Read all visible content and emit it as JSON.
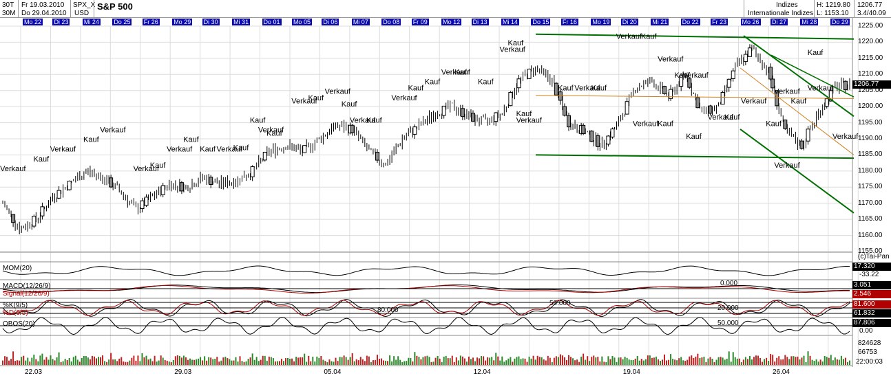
{
  "header": {
    "interval_1": "30T",
    "interval_2": "30M",
    "date_from_label": "Fr 19.03.2010",
    "date_to_label": "Do 29.04.2010",
    "symbol": "SPX_X",
    "currency": "USD",
    "title": "S&P 500",
    "group_1": "Indizes",
    "group_2": "Internationale Indizes",
    "high_label": "H: 1219.80",
    "low_label": "L: 1153.10",
    "last_price": "1206.77",
    "change": "3.4/40.09"
  },
  "date_chips": [
    "Mo 22",
    "Di 23",
    "Mi 24",
    "Do 25",
    "Fr 26",
    "Mo 29",
    "Di 30",
    "Mi 31",
    "Do 01",
    "Mo 05",
    "Di 06",
    "Mi 07",
    "Do 08",
    "Fr 09",
    "Mo 12",
    "Di 13",
    "Mi 14",
    "Do 15",
    "Fr 16",
    "Mo 19",
    "Di 20",
    "Mi 21",
    "Do 22",
    "Fr 23",
    "Mo 26",
    "Di 27",
    "Mi 28",
    "Do 29"
  ],
  "x_axis_labels": [
    "22.03",
    "29.03",
    "05.04",
    "12.04",
    "19.04",
    "26.04"
  ],
  "price_axis": {
    "ticks": [
      "1225.00",
      "1220.00",
      "1215.00",
      "1210.00",
      "1205.00",
      "1200.00",
      "1195.00",
      "1190.00",
      "1185.00",
      "1180.00",
      "1175.00",
      "1170.00",
      "1165.00",
      "1160.00",
      "1155.00"
    ],
    "current_value": "1206.77",
    "copyright": "(c)Tai-Pan"
  },
  "indicators": {
    "mom": {
      "label": "MOM(20)",
      "value": "17.320",
      "min": "-33.22"
    },
    "macd": {
      "label": "MACD(12/26/9)",
      "signal_label": "Signal(12/26/9)",
      "value": "3.051",
      "signal_value": "2.546",
      "zero": "0.000"
    },
    "stoch": {
      "label": "%K(9/5)",
      "d_label": "%D(9/5)",
      "k_value": "81.600",
      "d_value": "61.832",
      "ref_1": "80.000",
      "ref_2": "50.000",
      "ref_3": "20.000"
    },
    "obos": {
      "label": "OBOS(20)",
      "value": "87.806",
      "zero": "0.00",
      "ref": "50.000"
    },
    "volume": {
      "max": "824628",
      "mid": "66753",
      "time": "22:00:03"
    }
  },
  "signals": [
    {
      "t": "Verkauf",
      "x": 1,
      "y": 1180
    },
    {
      "t": "Kauf",
      "x": 3,
      "y": 1183
    },
    {
      "t": "Verkauf",
      "x": 4,
      "y": 1186
    },
    {
      "t": "Kauf",
      "x": 6,
      "y": 1189
    },
    {
      "t": "Verkauf",
      "x": 7,
      "y": 1192
    },
    {
      "t": "Verkauf",
      "x": 9,
      "y": 1180
    },
    {
      "t": "Kauf",
      "x": 10,
      "y": 1181
    },
    {
      "t": "Verkauf",
      "x": 11,
      "y": 1186
    },
    {
      "t": "Kauf",
      "x": 12,
      "y": 1189
    },
    {
      "t": "Kauf",
      "x": 13,
      "y": 1186
    },
    {
      "t": "Verkauf",
      "x": 14,
      "y": 1186
    },
    {
      "t": "Kauf",
      "x": 15,
      "y": 1186.5
    },
    {
      "t": "Kauf",
      "x": 16,
      "y": 1195
    },
    {
      "t": "Verkauf",
      "x": 16.5,
      "y": 1192
    },
    {
      "t": "Kauf",
      "x": 17,
      "y": 1191
    },
    {
      "t": "Verkauf",
      "x": 18.5,
      "y": 1201
    },
    {
      "t": "Kauf",
      "x": 19.5,
      "y": 1202
    },
    {
      "t": "Verkauf",
      "x": 20.5,
      "y": 1204
    },
    {
      "t": "Kauf",
      "x": 21.5,
      "y": 1200
    },
    {
      "t": "Verkauf",
      "x": 22,
      "y": 1195
    },
    {
      "t": "Kauf",
      "x": 23,
      "y": 1195
    },
    {
      "t": "Verkauf",
      "x": 24.5,
      "y": 1202
    },
    {
      "t": "Kauf",
      "x": 25.5,
      "y": 1205
    },
    {
      "t": "Kauf",
      "x": 26.5,
      "y": 1207
    },
    {
      "t": "Verkauf",
      "x": 27.5,
      "y": 1210
    },
    {
      "t": "Kauf",
      "x": 28.3,
      "y": 1210
    },
    {
      "t": "Kauf",
      "x": 29.7,
      "y": 1207
    },
    {
      "t": "Verkauf",
      "x": 31,
      "y": 1217
    },
    {
      "t": "Kauf",
      "x": 31.5,
      "y": 1219
    },
    {
      "t": "Kauf",
      "x": 32,
      "y": 1197
    },
    {
      "t": "Verkauf",
      "x": 32,
      "y": 1195
    },
    {
      "t": "Kauf",
      "x": 34.5,
      "y": 1205
    },
    {
      "t": "Verkauf",
      "x": 35.5,
      "y": 1205
    },
    {
      "t": "Kauf",
      "x": 36.5,
      "y": 1205
    },
    {
      "t": "Verkauf",
      "x": 38,
      "y": 1221
    },
    {
      "t": "Kauf",
      "x": 39.5,
      "y": 1221
    },
    {
      "t": "Verkauf",
      "x": 39,
      "y": 1194
    },
    {
      "t": "Kauf",
      "x": 40.5,
      "y": 1194
    },
    {
      "t": "Verkauf",
      "x": 40.5,
      "y": 1214
    },
    {
      "t": "Kauf",
      "x": 41.5,
      "y": 1209
    },
    {
      "t": "Verkauf",
      "x": 42,
      "y": 1209
    },
    {
      "t": "Kauf",
      "x": 42.2,
      "y": 1190
    },
    {
      "t": "Verkauf",
      "x": 43.5,
      "y": 1196
    },
    {
      "t": "Kauf",
      "x": 44.5,
      "y": 1196
    },
    {
      "t": "Verkauf",
      "x": 45.5,
      "y": 1201
    },
    {
      "t": "Kauf",
      "x": 47,
      "y": 1194
    },
    {
      "t": "Verkauf",
      "x": 47.5,
      "y": 1204
    },
    {
      "t": "Kauf",
      "x": 48.5,
      "y": 1201
    },
    {
      "t": "Verkauf",
      "x": 47.5,
      "y": 1181
    },
    {
      "t": "Kauf",
      "x": 49.5,
      "y": 1216
    },
    {
      "t": "Verkauf",
      "x": 49.5,
      "y": 1205
    },
    {
      "t": "Verkauf",
      "x": 51,
      "y": 1190
    }
  ]
}
